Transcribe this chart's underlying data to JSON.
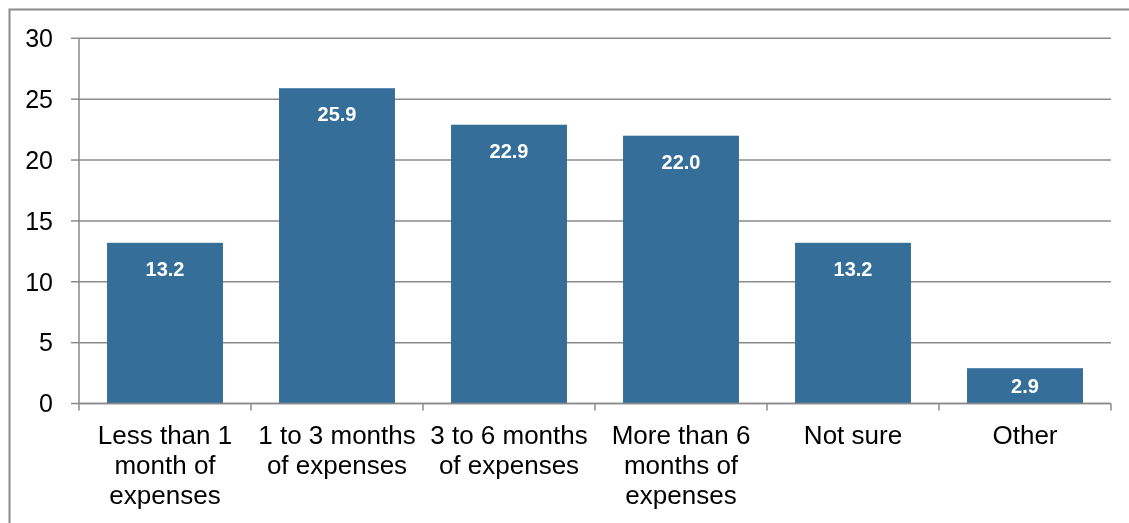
{
  "chart_data": {
    "type": "bar",
    "categories": [
      "Less than 1 month of expenses",
      "1 to 3 months of expenses",
      "3 to 6 months of expenses",
      "More than 6 months of expenses",
      "Not sure",
      "Other"
    ],
    "values": [
      13.2,
      25.9,
      22.9,
      22.0,
      13.2,
      2.9
    ],
    "value_labels": [
      "13.2",
      "25.9",
      "22.9",
      "22.0",
      "13.2",
      "2.9"
    ],
    "color": "#346e99",
    "ylim": [
      0,
      30
    ],
    "yticks": [
      0,
      5,
      10,
      15,
      20,
      25,
      30
    ],
    "grid": "y"
  }
}
